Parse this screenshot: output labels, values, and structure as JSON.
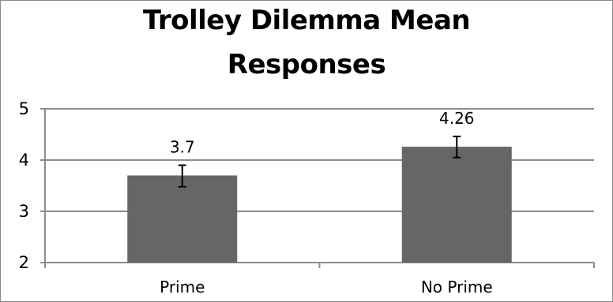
{
  "chart_data": {
    "type": "bar",
    "title": "Trolley Dilemma Mean Responses",
    "categories": [
      "Prime",
      "No Prime"
    ],
    "values": [
      3.7,
      4.26
    ],
    "value_labels": [
      "3.7",
      "4.26"
    ],
    "error_bars": [
      {
        "low": 3.48,
        "high": 3.9
      },
      {
        "low": 4.05,
        "high": 4.46
      }
    ],
    "xlabel": "",
    "ylabel": "",
    "ylim": [
      2,
      5
    ],
    "yticks": [
      2,
      3,
      4,
      5
    ],
    "ytick_labels": [
      "2",
      "3",
      "4",
      "5"
    ],
    "grid": true,
    "legend": "none",
    "bar_color": "#666666",
    "grid_color": "#8c8c8c"
  }
}
